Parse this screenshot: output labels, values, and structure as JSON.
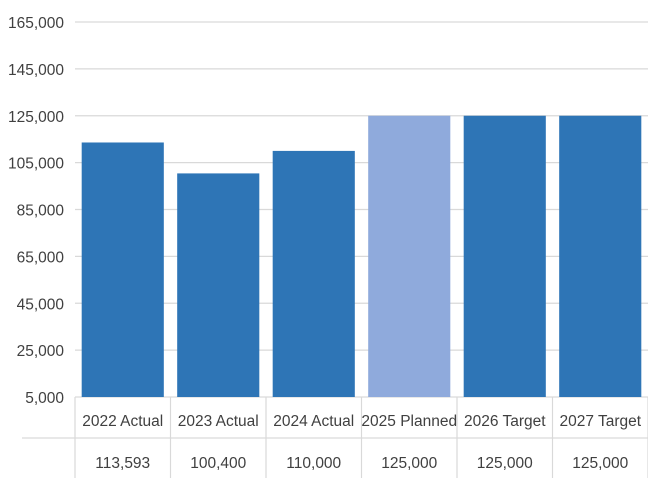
{
  "chart_data": {
    "type": "bar",
    "title": "",
    "xlabel": "",
    "ylabel": "",
    "categories": [
      "2022 Actual",
      "2023 Actual",
      "2024 Actual",
      "2025 Planned",
      "2026 Target",
      "2027 Target"
    ],
    "values": [
      113593,
      100400,
      110000,
      125000,
      125000,
      125000
    ],
    "value_labels": [
      "113,593",
      "100,400",
      "110,000",
      "125,000",
      "125,000",
      "125,000"
    ],
    "ylim": [
      5000,
      165000
    ],
    "y_ticks": [
      5000,
      25000,
      45000,
      65000,
      85000,
      105000,
      125000,
      145000,
      165000
    ],
    "y_tick_labels": [
      "5,000",
      "25,000",
      "45,000",
      "65,000",
      "85,000",
      "105,000",
      "125,000",
      "145,000",
      "165,000"
    ],
    "grid": true,
    "legend": "none",
    "data_table": true,
    "bar_colors": [
      "#2E75B6",
      "#2E75B6",
      "#2E75B6",
      "#8FAADC",
      "#2E75B6",
      "#2E75B6"
    ],
    "grid_color": "#D9D9D9",
    "text_color": "#404040"
  }
}
